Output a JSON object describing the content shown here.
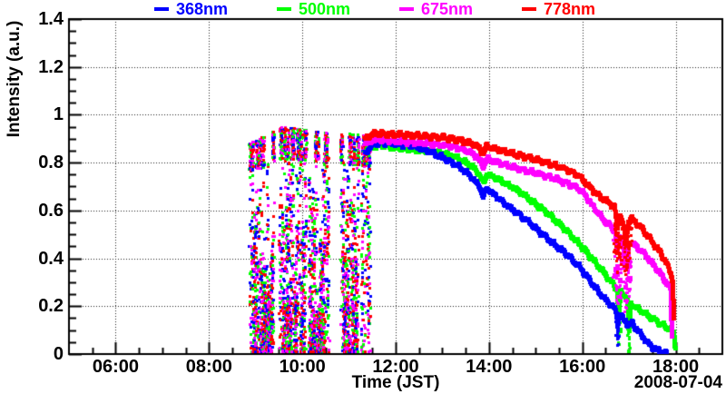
{
  "chart_data": {
    "type": "scatter",
    "title": "",
    "xlabel": "Time (JST)",
    "ylabel": "Intensity (a.u.)",
    "date_label": "2008-07-04",
    "background_color": "#ffffff",
    "frame_color": "#000000",
    "grid": {
      "style": "dotted",
      "shown": true,
      "color": "#222222"
    },
    "x_axis": {
      "unit": "hour_of_day_JST",
      "start_hour": 5,
      "end_hour": 19,
      "major_tick_hours": [
        6,
        8,
        10,
        12,
        14,
        16,
        18
      ],
      "major_tick_labels": [
        "06:00",
        "08:00",
        "10:00",
        "12:00",
        "14:00",
        "16:00",
        "18:00"
      ],
      "minor_tick_step_hours": 0.5
    },
    "y_axis": {
      "min": 0,
      "max": 1.4,
      "major_tick_values": [
        0,
        0.2,
        0.4,
        0.6,
        0.8,
        1.0,
        1.2,
        1.4
      ],
      "major_tick_labels": [
        "0",
        "0.2",
        "0.4",
        "0.6",
        "0.8",
        "1",
        "1.2",
        "1.4"
      ],
      "minor_tick_step": 0.05
    },
    "legend": {
      "position": "top",
      "entries": [
        {
          "label": "368nm",
          "color": "#0000ff"
        },
        {
          "label": "500nm",
          "color": "#00ff00"
        },
        {
          "label": "675nm",
          "color": "#ff00ff"
        },
        {
          "label": "778nm",
          "color": "#ff0000"
        }
      ]
    },
    "series": [
      {
        "name": "368nm",
        "color": "#0000ff",
        "marker_size_px": 5,
        "afternoon_curve_hour_value": [
          [
            11.35,
            0.84
          ],
          [
            11.45,
            0.865
          ],
          [
            11.55,
            0.875
          ],
          [
            11.7,
            0.885
          ],
          [
            11.85,
            0.88
          ],
          [
            12.0,
            0.88
          ],
          [
            12.15,
            0.875
          ],
          [
            12.3,
            0.872
          ],
          [
            12.45,
            0.865
          ],
          [
            12.6,
            0.855
          ],
          [
            12.75,
            0.845
          ],
          [
            12.9,
            0.83
          ],
          [
            13.05,
            0.818
          ],
          [
            13.2,
            0.8
          ],
          [
            13.35,
            0.785
          ],
          [
            13.5,
            0.762
          ],
          [
            13.65,
            0.735
          ],
          [
            13.8,
            0.7
          ],
          [
            13.88,
            0.655
          ],
          [
            13.95,
            0.695
          ],
          [
            14.1,
            0.668
          ],
          [
            14.3,
            0.636
          ],
          [
            14.5,
            0.605
          ],
          [
            14.7,
            0.576
          ],
          [
            14.9,
            0.545
          ],
          [
            15.1,
            0.51
          ],
          [
            15.3,
            0.475
          ],
          [
            15.5,
            0.443
          ],
          [
            15.7,
            0.41
          ],
          [
            15.9,
            0.372
          ],
          [
            16.1,
            0.325
          ],
          [
            16.3,
            0.272
          ],
          [
            16.5,
            0.228
          ],
          [
            16.65,
            0.198
          ],
          [
            16.73,
            0.175
          ],
          [
            16.76,
            0.125
          ],
          [
            16.8,
            0.168
          ],
          [
            16.9,
            0.142
          ],
          [
            17.0,
            0.118
          ],
          [
            17.07,
            0.132
          ],
          [
            17.15,
            0.108
          ],
          [
            17.25,
            0.082
          ],
          [
            17.35,
            0.058
          ],
          [
            17.45,
            0.038
          ],
          [
            17.55,
            0.022
          ],
          [
            17.65,
            0.012
          ],
          [
            17.75,
            0.005
          ],
          [
            17.82,
            0.001
          ]
        ],
        "dip_scatter_windows": [
          [
            16.72,
            16.8,
            0.1
          ]
        ]
      },
      {
        "name": "500nm",
        "color": "#00ff00",
        "marker_size_px": 5,
        "afternoon_curve_hour_value": [
          [
            11.35,
            0.85
          ],
          [
            11.5,
            0.868
          ],
          [
            11.65,
            0.872
          ],
          [
            11.8,
            0.868
          ],
          [
            12.0,
            0.862
          ],
          [
            12.2,
            0.858
          ],
          [
            12.4,
            0.853
          ],
          [
            12.6,
            0.85
          ],
          [
            12.8,
            0.848
          ],
          [
            13.0,
            0.84
          ],
          [
            13.2,
            0.828
          ],
          [
            13.4,
            0.812
          ],
          [
            13.6,
            0.79
          ],
          [
            13.75,
            0.765
          ],
          [
            13.88,
            0.715
          ],
          [
            13.95,
            0.752
          ],
          [
            14.1,
            0.74
          ],
          [
            14.3,
            0.72
          ],
          [
            14.5,
            0.698
          ],
          [
            14.7,
            0.672
          ],
          [
            14.9,
            0.642
          ],
          [
            15.1,
            0.613
          ],
          [
            15.3,
            0.58
          ],
          [
            15.5,
            0.545
          ],
          [
            15.7,
            0.508
          ],
          [
            15.9,
            0.468
          ],
          [
            16.1,
            0.425
          ],
          [
            16.3,
            0.378
          ],
          [
            16.5,
            0.332
          ],
          [
            16.65,
            0.295
          ],
          [
            16.74,
            0.272
          ],
          [
            16.78,
            0.175
          ],
          [
            16.83,
            0.258
          ],
          [
            16.9,
            0.248
          ],
          [
            16.97,
            0.228
          ],
          [
            17.0,
            0.095
          ],
          [
            17.04,
            0.208
          ],
          [
            17.15,
            0.196
          ],
          [
            17.3,
            0.175
          ],
          [
            17.45,
            0.155
          ],
          [
            17.6,
            0.136
          ],
          [
            17.75,
            0.118
          ],
          [
            17.88,
            0.103
          ],
          [
            17.96,
            0.09
          ],
          [
            17.98,
            0.05
          ],
          [
            18.0,
            0.002
          ]
        ],
        "dip_scatter_windows": [
          [
            16.74,
            16.82,
            0.15
          ],
          [
            16.96,
            17.03,
            0.18
          ]
        ]
      },
      {
        "name": "675nm",
        "color": "#ff00ff",
        "marker_size_px": 5,
        "afternoon_curve_hour_value": [
          [
            11.35,
            0.875
          ],
          [
            11.5,
            0.895
          ],
          [
            11.65,
            0.898
          ],
          [
            11.8,
            0.893
          ],
          [
            12.0,
            0.89
          ],
          [
            12.2,
            0.888
          ],
          [
            12.4,
            0.884
          ],
          [
            12.6,
            0.881
          ],
          [
            12.8,
            0.878
          ],
          [
            13.0,
            0.874
          ],
          [
            13.2,
            0.868
          ],
          [
            13.4,
            0.858
          ],
          [
            13.6,
            0.843
          ],
          [
            13.75,
            0.825
          ],
          [
            13.88,
            0.782
          ],
          [
            13.95,
            0.818
          ],
          [
            14.1,
            0.806
          ],
          [
            14.3,
            0.793
          ],
          [
            14.5,
            0.782
          ],
          [
            14.7,
            0.772
          ],
          [
            14.9,
            0.762
          ],
          [
            15.1,
            0.752
          ],
          [
            15.3,
            0.74
          ],
          [
            15.5,
            0.727
          ],
          [
            15.7,
            0.712
          ],
          [
            15.9,
            0.695
          ],
          [
            16.05,
            0.668
          ],
          [
            16.2,
            0.625
          ],
          [
            16.35,
            0.585
          ],
          [
            16.5,
            0.553
          ],
          [
            16.62,
            0.532
          ],
          [
            16.7,
            0.515
          ],
          [
            16.75,
            0.42
          ],
          [
            16.8,
            0.49
          ],
          [
            16.87,
            0.47
          ],
          [
            16.93,
            0.35
          ],
          [
            16.99,
            0.46
          ],
          [
            17.05,
            0.468
          ],
          [
            17.15,
            0.45
          ],
          [
            17.3,
            0.425
          ],
          [
            17.45,
            0.392
          ],
          [
            17.6,
            0.355
          ],
          [
            17.72,
            0.322
          ],
          [
            17.82,
            0.295
          ],
          [
            17.89,
            0.272
          ],
          [
            17.91,
            0.15
          ],
          [
            17.93,
            0.002
          ]
        ],
        "dip_scatter_windows": [
          [
            16.68,
            16.86,
            0.25
          ],
          [
            16.9,
            17.06,
            0.22
          ]
        ]
      },
      {
        "name": "778nm",
        "color": "#ff0000",
        "marker_size_px": 5,
        "afternoon_curve_hour_value": [
          [
            11.35,
            0.9
          ],
          [
            11.5,
            0.918
          ],
          [
            11.65,
            0.922
          ],
          [
            11.8,
            0.917
          ],
          [
            12.0,
            0.918
          ],
          [
            12.2,
            0.916
          ],
          [
            12.4,
            0.912
          ],
          [
            12.6,
            0.91
          ],
          [
            12.8,
            0.908
          ],
          [
            13.0,
            0.905
          ],
          [
            13.2,
            0.9
          ],
          [
            13.4,
            0.893
          ],
          [
            13.6,
            0.882
          ],
          [
            13.75,
            0.868
          ],
          [
            13.88,
            0.838
          ],
          [
            13.95,
            0.868
          ],
          [
            14.1,
            0.858
          ],
          [
            14.3,
            0.848
          ],
          [
            14.5,
            0.838
          ],
          [
            14.7,
            0.828
          ],
          [
            14.9,
            0.818
          ],
          [
            15.1,
            0.808
          ],
          [
            15.3,
            0.795
          ],
          [
            15.5,
            0.783
          ],
          [
            15.7,
            0.768
          ],
          [
            15.9,
            0.748
          ],
          [
            16.05,
            0.722
          ],
          [
            16.2,
            0.69
          ],
          [
            16.35,
            0.662
          ],
          [
            16.5,
            0.64
          ],
          [
            16.62,
            0.625
          ],
          [
            16.7,
            0.612
          ],
          [
            16.75,
            0.52
          ],
          [
            16.8,
            0.585
          ],
          [
            16.87,
            0.55
          ],
          [
            16.93,
            0.47
          ],
          [
            16.99,
            0.555
          ],
          [
            17.05,
            0.565
          ],
          [
            17.15,
            0.552
          ],
          [
            17.3,
            0.518
          ],
          [
            17.45,
            0.482
          ],
          [
            17.6,
            0.443
          ],
          [
            17.72,
            0.408
          ],
          [
            17.82,
            0.372
          ],
          [
            17.9,
            0.338
          ],
          [
            17.94,
            0.305
          ],
          [
            17.96,
            0.15
          ],
          [
            17.97,
            0.002
          ]
        ],
        "dip_scatter_windows": [
          [
            16.68,
            16.86,
            0.2
          ],
          [
            16.9,
            17.06,
            0.16
          ]
        ]
      }
    ],
    "morning_scatter": {
      "description": "broken-cloud period: random vertical streaks of points 0..envelope for all four wavelengths",
      "windows_hours": [
        [
          8.88,
          9.4
        ],
        [
          9.52,
          10.09
        ],
        [
          10.15,
          10.57
        ],
        [
          10.83,
          11.22
        ],
        [
          11.28,
          11.45
        ]
      ],
      "envelope_hour_value": [
        [
          8.88,
          0.88
        ],
        [
          9.6,
          0.95
        ],
        [
          10.3,
          0.93
        ],
        [
          11.0,
          0.92
        ],
        [
          11.45,
          0.91
        ]
      ],
      "high_column_probability": 0.27,
      "seed": 1234
    }
  }
}
